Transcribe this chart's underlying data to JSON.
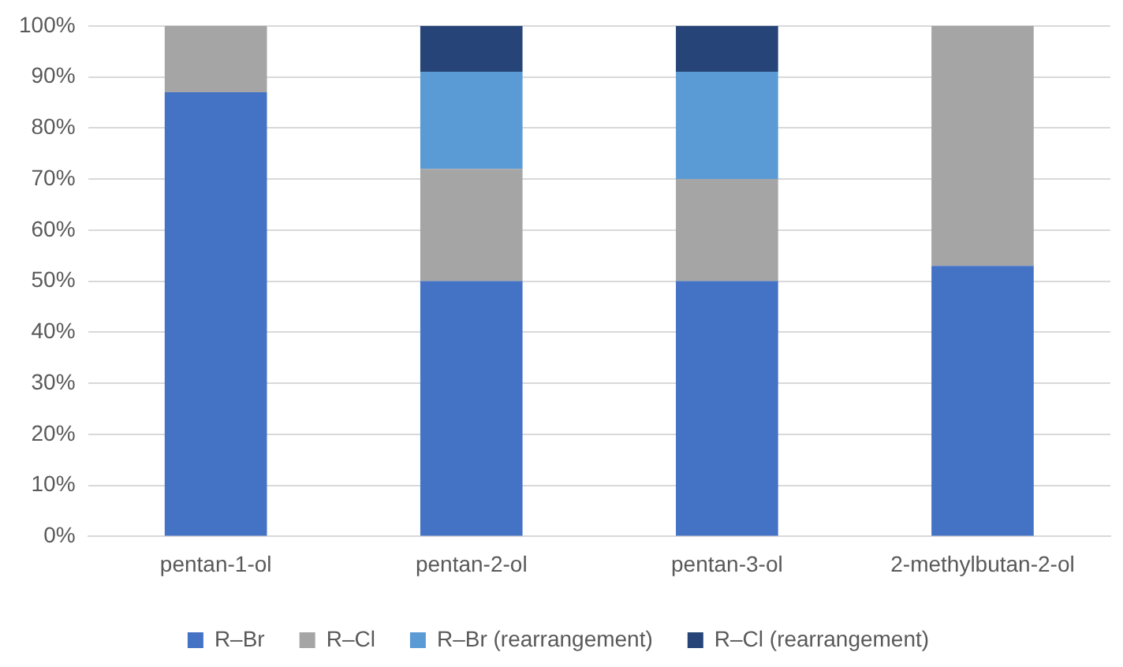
{
  "chart_data": {
    "type": "bar",
    "stacked": true,
    "categories": [
      "pentan-1-ol",
      "pentan-2-ol",
      "pentan-3-ol",
      "2-methylbutan-2-ol"
    ],
    "series": [
      {
        "name": "R–Br",
        "color": "#4472c4",
        "values": [
          87,
          50,
          50,
          53
        ]
      },
      {
        "name": "R–Cl",
        "color": "#a5a5a5",
        "values": [
          13,
          22,
          20,
          47
        ]
      },
      {
        "name": "R–Br (rearrangement)",
        "color": "#5b9bd5",
        "values": [
          null,
          19,
          21,
          null
        ]
      },
      {
        "name": "R–Cl (rearrangement)",
        "color": "#264478",
        "values": [
          null,
          9,
          9,
          null
        ]
      }
    ],
    "ylim": [
      0,
      100
    ],
    "yticks": [
      {
        "value": 0,
        "label": "0%"
      },
      {
        "value": 10,
        "label": "10%"
      },
      {
        "value": 20,
        "label": "20%"
      },
      {
        "value": 30,
        "label": "30%"
      },
      {
        "value": 40,
        "label": "40%"
      },
      {
        "value": 50,
        "label": "50%"
      },
      {
        "value": 60,
        "label": "60%"
      },
      {
        "value": 70,
        "label": "70%"
      },
      {
        "value": 80,
        "label": "80%"
      },
      {
        "value": 90,
        "label": "90%"
      },
      {
        "value": 100,
        "label": "100%"
      }
    ],
    "grid": "y",
    "legend": "bottom"
  }
}
